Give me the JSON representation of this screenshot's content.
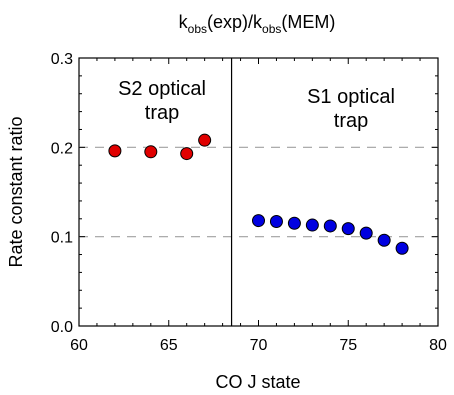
{
  "chart_data": {
    "type": "scatter",
    "title_parts": [
      "k",
      "obs",
      "(exp)/k",
      "obs",
      "(MEM)"
    ],
    "xlabel": "CO J state",
    "ylabel": "Rate constant ratio",
    "xlim": [
      60,
      80
    ],
    "ylim": [
      0.0,
      0.3
    ],
    "x_ticks": [
      60,
      65,
      70,
      75,
      80
    ],
    "y_ticks": [
      "0.0",
      "0.1",
      "0.2",
      "0.3"
    ],
    "reference_lines_y": [
      0.1,
      0.2
    ],
    "divider_x": 68.5,
    "annotations": {
      "left": [
        "S2 optical",
        "trap"
      ],
      "right": [
        "S1 optical",
        "trap"
      ]
    },
    "series": [
      {
        "color": "#e00000",
        "x": [
          62,
          64,
          66,
          67
        ],
        "y": [
          0.196,
          0.195,
          0.193,
          0.208
        ]
      },
      {
        "color": "#0000e0",
        "x": [
          70,
          71,
          72,
          73,
          74,
          75,
          76,
          77,
          78
        ],
        "y": [
          0.118,
          0.117,
          0.115,
          0.113,
          0.112,
          0.109,
          0.104,
          0.096,
          0.087
        ]
      }
    ]
  }
}
